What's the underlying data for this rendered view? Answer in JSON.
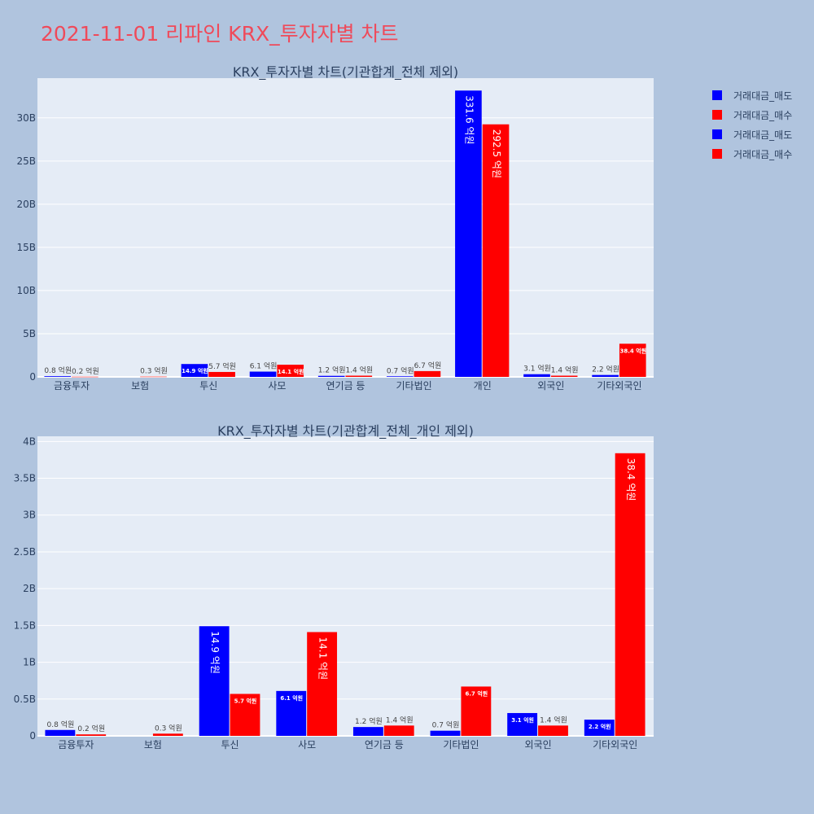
{
  "page": {
    "title": "2021-11-01 리파인 KRX_투자자별 차트"
  },
  "legend": [
    {
      "label": "거래대금_매도",
      "color": "#0000ff"
    },
    {
      "label": "거래대금_매수",
      "color": "#ff0000"
    },
    {
      "label": "거래대금_매도",
      "color": "#0000ff"
    },
    {
      "label": "거래대금_매수",
      "color": "#ff0000"
    }
  ],
  "chart_data": [
    {
      "type": "bar",
      "title": "KRX_투자자별 차트(기관합계_전체 제외)",
      "categories": [
        "금융투자",
        "보험",
        "투신",
        "사모",
        "연기금 등",
        "기타법인",
        "개인",
        "외국인",
        "기타외국인"
      ],
      "yticks": [
        "0",
        "5B",
        "10B",
        "15B",
        "20B",
        "25B",
        "30B"
      ],
      "ylim": [
        0,
        34600000000
      ],
      "grid": true,
      "series": [
        {
          "name": "거래대금_매도",
          "color": "#0000ff",
          "values": [
            80000000,
            null,
            1490000000,
            610000000,
            120000000,
            70000000,
            33160000000,
            310000000,
            220000000
          ],
          "labels": [
            "0.8 억원",
            "",
            "14.9 억원",
            "6.1 억원",
            "1.2 억원",
            "0.7 억원",
            "331.6 억원",
            "3.1 억원",
            "2.2 억원"
          ]
        },
        {
          "name": "거래대금_매수",
          "color": "#ff0000",
          "values": [
            20000000,
            30000000,
            570000000,
            1410000000,
            140000000,
            670000000,
            29250000000,
            140000000,
            3840000000
          ],
          "labels": [
            "0.2 억원",
            "0.3 억원",
            "5.7 억원",
            "14.1 억원",
            "1.4 억원",
            "6.7 억원",
            "292.5 억원",
            "1.4 억원",
            "38.4 억원"
          ]
        }
      ]
    },
    {
      "type": "bar",
      "title": "KRX_투자자별 차트(기관합계_전체_개인 제외)",
      "categories": [
        "금융투자",
        "보험",
        "투신",
        "사모",
        "연기금 등",
        "기타법인",
        "외국인",
        "기타외국인"
      ],
      "yticks": [
        "0",
        "0.5B",
        "1B",
        "1.5B",
        "2B",
        "2.5B",
        "3B",
        "3.5B",
        "4B"
      ],
      "ylim": [
        0,
        4070000000
      ],
      "grid": true,
      "series": [
        {
          "name": "거래대금_매도",
          "color": "#0000ff",
          "values": [
            80000000,
            null,
            1490000000,
            610000000,
            120000000,
            70000000,
            310000000,
            220000000
          ],
          "labels": [
            "0.8 억원",
            "",
            "14.9 억원",
            "6.1 억원",
            "1.2 억원",
            "0.7 억원",
            "3.1 억원",
            "2.2 억원"
          ]
        },
        {
          "name": "거래대금_매수",
          "color": "#ff0000",
          "values": [
            20000000,
            30000000,
            570000000,
            1410000000,
            140000000,
            670000000,
            140000000,
            3840000000
          ],
          "labels": [
            "0.2 억원",
            "0.3 억원",
            "5.7 억원",
            "14.1 억원",
            "1.4 억원",
            "6.7 억원",
            "1.4 억원",
            "38.4 억원"
          ]
        }
      ]
    }
  ]
}
